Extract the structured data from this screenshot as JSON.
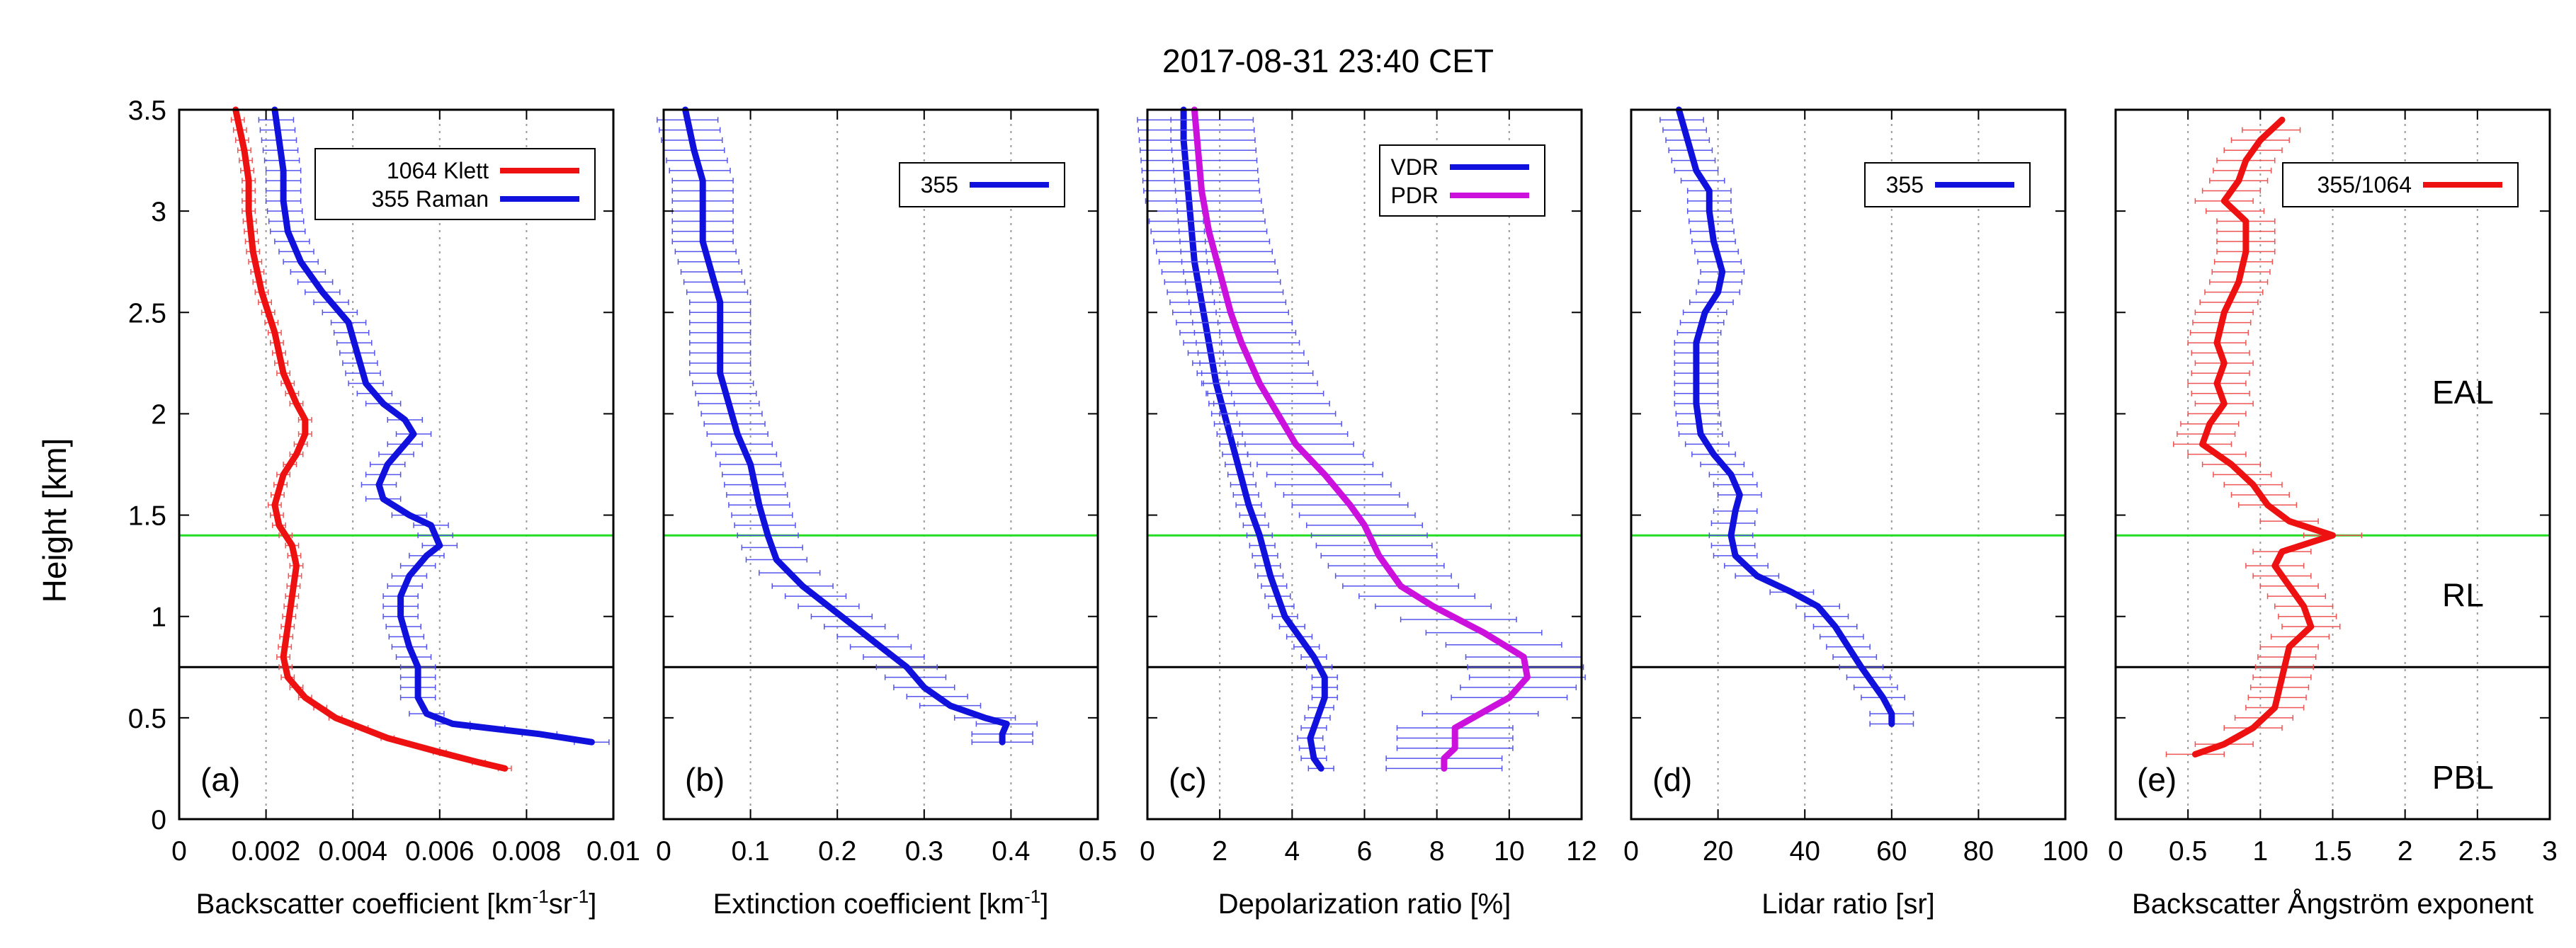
{
  "title": "2017-08-31 23:40 CET",
  "ylabel": "Height [km]",
  "colors": {
    "red": "#ee1111",
    "blue": "#1111dd",
    "magenta": "#cc11dd",
    "green": "#22dd22",
    "black": "#000000",
    "errbar": "#5555ee",
    "errbar_red": "#ee5555"
  },
  "chart_data": [
    {
      "type": "line",
      "panel": "(a)",
      "xlabel": "Backscatter coefficient [km-1sr-1]",
      "xlabel_parts": {
        "base": "Backscatter coefficient [km",
        "e1": "-1",
        "mid": "sr",
        "e2": "-1",
        "end": "]"
      },
      "xlim": [
        0,
        0.01
      ],
      "ylim": [
        0,
        3.5
      ],
      "xticks": [
        0,
        0.002,
        0.004,
        0.006,
        0.008,
        0.01
      ],
      "xtick_labels": [
        "0",
        "0.002",
        "0.004",
        "0.006",
        "0.008",
        "0.01"
      ],
      "yticks": [
        0,
        0.5,
        1,
        1.5,
        2,
        2.5,
        3,
        3.5
      ],
      "ytick_labels": [
        "0",
        "0.5",
        "1",
        "1.5",
        "2",
        "2.5",
        "3",
        "3.5"
      ],
      "series": [
        {
          "name": "1064 Klett",
          "color": "red",
          "err": 0.00015,
          "points": [
            [
              0.0075,
              0.25
            ],
            [
              0.0069,
              0.28
            ],
            [
              0.006,
              0.33
            ],
            [
              0.0048,
              0.4
            ],
            [
              0.0036,
              0.5
            ],
            [
              0.0029,
              0.6
            ],
            [
              0.0025,
              0.7
            ],
            [
              0.0024,
              0.8
            ],
            [
              0.0025,
              0.95
            ],
            [
              0.0026,
              1.1
            ],
            [
              0.0027,
              1.25
            ],
            [
              0.0026,
              1.35
            ],
            [
              0.0023,
              1.45
            ],
            [
              0.0022,
              1.55
            ],
            [
              0.0024,
              1.7
            ],
            [
              0.0027,
              1.8
            ],
            [
              0.0029,
              1.9
            ],
            [
              0.0029,
              1.97
            ],
            [
              0.0027,
              2.05
            ],
            [
              0.0024,
              2.2
            ],
            [
              0.0022,
              2.4
            ],
            [
              0.0019,
              2.6
            ],
            [
              0.0017,
              2.8
            ],
            [
              0.0016,
              3.0
            ],
            [
              0.0016,
              3.15
            ],
            [
              0.0015,
              3.3
            ],
            [
              0.0013,
              3.5
            ]
          ]
        },
        {
          "name": "355 Raman",
          "color": "blue",
          "err": 0.0004,
          "points": [
            [
              0.0095,
              0.38
            ],
            [
              0.0083,
              0.42
            ],
            [
              0.0071,
              0.45
            ],
            [
              0.0063,
              0.47
            ],
            [
              0.0057,
              0.52
            ],
            [
              0.0055,
              0.6
            ],
            [
              0.0055,
              0.75
            ],
            [
              0.0053,
              0.85
            ],
            [
              0.0051,
              1.0
            ],
            [
              0.0051,
              1.1
            ],
            [
              0.0053,
              1.2
            ],
            [
              0.0057,
              1.3
            ],
            [
              0.006,
              1.35
            ],
            [
              0.0058,
              1.45
            ],
            [
              0.0053,
              1.5
            ],
            [
              0.0047,
              1.58
            ],
            [
              0.0046,
              1.65
            ],
            [
              0.0048,
              1.75
            ],
            [
              0.0052,
              1.85
            ],
            [
              0.0054,
              1.9
            ],
            [
              0.0052,
              1.97
            ],
            [
              0.0047,
              2.05
            ],
            [
              0.0043,
              2.15
            ],
            [
              0.0041,
              2.3
            ],
            [
              0.0039,
              2.45
            ],
            [
              0.0033,
              2.6
            ],
            [
              0.0028,
              2.75
            ],
            [
              0.0025,
              2.9
            ],
            [
              0.0024,
              3.05
            ],
            [
              0.0024,
              3.2
            ],
            [
              0.0023,
              3.35
            ],
            [
              0.0022,
              3.5
            ]
          ]
        }
      ],
      "hlines": [
        {
          "y": 1.4,
          "color": "green"
        },
        {
          "y": 0.75,
          "color": "black"
        }
      ],
      "legend": [
        {
          "label": "1064 Klett",
          "color": "red"
        },
        {
          "label": "355 Raman",
          "color": "blue"
        }
      ]
    },
    {
      "type": "line",
      "panel": "(b)",
      "xlabel": "Extinction coefficient [km-1]",
      "xlabel_parts": {
        "base": "Extinction coefficient [km",
        "e1": "-1",
        "end": "]"
      },
      "xlim": [
        0,
        0.5
      ],
      "ylim": [
        0,
        3.5
      ],
      "xticks": [
        0,
        0.1,
        0.2,
        0.3,
        0.4,
        0.5
      ],
      "xtick_labels": [
        "0",
        "0.1",
        "0.2",
        "0.3",
        "0.4",
        "0.5"
      ],
      "series": [
        {
          "name": "355",
          "color": "blue",
          "err": 0.035,
          "points": [
            [
              0.39,
              0.38
            ],
            [
              0.39,
              0.42
            ],
            [
              0.395,
              0.47
            ],
            [
              0.37,
              0.5
            ],
            [
              0.33,
              0.56
            ],
            [
              0.3,
              0.65
            ],
            [
              0.28,
              0.75
            ],
            [
              0.25,
              0.85
            ],
            [
              0.22,
              0.95
            ],
            [
              0.19,
              1.05
            ],
            [
              0.16,
              1.15
            ],
            [
              0.13,
              1.28
            ],
            [
              0.12,
              1.4
            ],
            [
              0.11,
              1.55
            ],
            [
              0.1,
              1.75
            ],
            [
              0.085,
              1.9
            ],
            [
              0.075,
              2.05
            ],
            [
              0.065,
              2.2
            ],
            [
              0.065,
              2.4
            ],
            [
              0.065,
              2.55
            ],
            [
              0.055,
              2.7
            ],
            [
              0.045,
              2.85
            ],
            [
              0.045,
              3.0
            ],
            [
              0.045,
              3.15
            ],
            [
              0.035,
              3.3
            ],
            [
              0.025,
              3.5
            ]
          ]
        }
      ],
      "hlines": [
        {
          "y": 1.4,
          "color": "green"
        },
        {
          "y": 0.75,
          "color": "black"
        }
      ],
      "legend": [
        {
          "label": "355",
          "color": "blue"
        }
      ]
    },
    {
      "type": "line",
      "panel": "(c)",
      "xlabel": "Depolarization ratio [%]",
      "xlim": [
        0,
        12
      ],
      "ylim": [
        0,
        3.5
      ],
      "xticks": [
        0,
        2,
        4,
        6,
        8,
        10,
        12
      ],
      "xtick_labels": [
        "0",
        "2",
        "4",
        "6",
        "8",
        "10",
        "12"
      ],
      "series": [
        {
          "name": "VDR",
          "color": "blue",
          "err": 0.35,
          "points": [
            [
              4.8,
              0.25
            ],
            [
              4.6,
              0.3
            ],
            [
              4.5,
              0.4
            ],
            [
              4.7,
              0.5
            ],
            [
              4.9,
              0.6
            ],
            [
              4.9,
              0.7
            ],
            [
              4.6,
              0.8
            ],
            [
              4.2,
              0.9
            ],
            [
              3.8,
              1.0
            ],
            [
              3.4,
              1.2
            ],
            [
              3.1,
              1.4
            ],
            [
              2.8,
              1.55
            ],
            [
              2.5,
              1.75
            ],
            [
              2.2,
              1.95
            ],
            [
              1.9,
              2.15
            ],
            [
              1.7,
              2.35
            ],
            [
              1.5,
              2.55
            ],
            [
              1.3,
              2.75
            ],
            [
              1.2,
              2.95
            ],
            [
              1.1,
              3.15
            ],
            [
              1.0,
              3.35
            ],
            [
              1.0,
              3.5
            ]
          ]
        },
        {
          "name": "PDR",
          "color": "magenta",
          "err": 1.6,
          "points": [
            [
              8.2,
              0.25
            ],
            [
              8.2,
              0.3
            ],
            [
              8.5,
              0.35
            ],
            [
              8.5,
              0.45
            ],
            [
              9.2,
              0.52
            ],
            [
              10.0,
              0.6
            ],
            [
              10.5,
              0.7
            ],
            [
              10.4,
              0.8
            ],
            [
              9.3,
              0.92
            ],
            [
              7.9,
              1.05
            ],
            [
              7.0,
              1.15
            ],
            [
              6.4,
              1.3
            ],
            [
              6.0,
              1.45
            ],
            [
              5.6,
              1.55
            ],
            [
              4.9,
              1.7
            ],
            [
              4.1,
              1.85
            ],
            [
              3.6,
              2.0
            ],
            [
              3.1,
              2.15
            ],
            [
              2.6,
              2.35
            ],
            [
              2.3,
              2.5
            ],
            [
              2.0,
              2.7
            ],
            [
              1.7,
              2.9
            ],
            [
              1.5,
              3.1
            ],
            [
              1.4,
              3.3
            ],
            [
              1.3,
              3.5
            ]
          ]
        }
      ],
      "hlines": [
        {
          "y": 1.4,
          "color": "green"
        },
        {
          "y": 0.75,
          "color": "black"
        }
      ],
      "legend": [
        {
          "label": "VDR",
          "color": "blue"
        },
        {
          "label": "PDR",
          "color": "magenta"
        }
      ]
    },
    {
      "type": "line",
      "panel": "(d)",
      "xlabel": "Lidar ratio [sr]",
      "xlim": [
        0,
        100
      ],
      "ylim": [
        0,
        3.5
      ],
      "xticks": [
        0,
        20,
        40,
        60,
        80,
        100
      ],
      "xtick_labels": [
        "0",
        "20",
        "40",
        "60",
        "80",
        "100"
      ],
      "series": [
        {
          "name": "355",
          "color": "blue",
          "err": 5,
          "points": [
            [
              60,
              0.47
            ],
            [
              60,
              0.52
            ],
            [
              58,
              0.6
            ],
            [
              53,
              0.75
            ],
            [
              50,
              0.85
            ],
            [
              47,
              0.95
            ],
            [
              43,
              1.05
            ],
            [
              37,
              1.12
            ],
            [
              29,
              1.2
            ],
            [
              24,
              1.3
            ],
            [
              23,
              1.4
            ],
            [
              24,
              1.52
            ],
            [
              25,
              1.6
            ],
            [
              23,
              1.7
            ],
            [
              19,
              1.8
            ],
            [
              16,
              1.9
            ],
            [
              15,
              2.05
            ],
            [
              15,
              2.2
            ],
            [
              15,
              2.35
            ],
            [
              17,
              2.5
            ],
            [
              20,
              2.6
            ],
            [
              21,
              2.7
            ],
            [
              19,
              2.85
            ],
            [
              18,
              3.0
            ],
            [
              18,
              3.1
            ],
            [
              15,
              3.2
            ],
            [
              13,
              3.35
            ],
            [
              11,
              3.5
            ]
          ]
        }
      ],
      "hlines": [
        {
          "y": 1.4,
          "color": "green"
        },
        {
          "y": 0.75,
          "color": "black"
        }
      ],
      "legend": [
        {
          "label": "355",
          "color": "blue"
        }
      ]
    },
    {
      "type": "line",
      "panel": "(e)",
      "xlabel": "Backscatter Ångström exponent",
      "xlim": [
        0,
        3
      ],
      "ylim": [
        0,
        3.5
      ],
      "xticks": [
        0,
        0.5,
        1,
        1.5,
        2,
        2.5,
        3
      ],
      "xtick_labels": [
        "0",
        "0.5",
        "1",
        "1.5",
        "2",
        "2.5",
        "3"
      ],
      "series": [
        {
          "name": "355/1064",
          "color": "red",
          "err": 0.2,
          "points": [
            [
              0.55,
              0.32
            ],
            [
              0.75,
              0.37
            ],
            [
              0.95,
              0.45
            ],
            [
              1.1,
              0.55
            ],
            [
              1.15,
              0.7
            ],
            [
              1.2,
              0.85
            ],
            [
              1.35,
              0.95
            ],
            [
              1.3,
              1.05
            ],
            [
              1.2,
              1.15
            ],
            [
              1.1,
              1.25
            ],
            [
              1.15,
              1.32
            ],
            [
              1.5,
              1.4
            ],
            [
              1.2,
              1.47
            ],
            [
              1.05,
              1.55
            ],
            [
              0.95,
              1.65
            ],
            [
              0.8,
              1.75
            ],
            [
              0.6,
              1.85
            ],
            [
              0.65,
              1.95
            ],
            [
              0.75,
              2.05
            ],
            [
              0.7,
              2.15
            ],
            [
              0.75,
              2.25
            ],
            [
              0.7,
              2.35
            ],
            [
              0.75,
              2.5
            ],
            [
              0.85,
              2.65
            ],
            [
              0.9,
              2.8
            ],
            [
              0.9,
              2.95
            ],
            [
              0.75,
              3.05
            ],
            [
              0.85,
              3.15
            ],
            [
              0.9,
              3.25
            ],
            [
              1.0,
              3.35
            ],
            [
              1.15,
              3.45
            ]
          ]
        }
      ],
      "hlines": [
        {
          "y": 1.4,
          "color": "green"
        },
        {
          "y": 0.75,
          "color": "black"
        }
      ],
      "legend": [
        {
          "label": "355/1064",
          "color": "red"
        }
      ],
      "annotations": [
        {
          "text": "EAL",
          "x": 2.4,
          "y": 2.05
        },
        {
          "text": "RL",
          "x": 2.4,
          "y": 1.05
        },
        {
          "text": "PBL",
          "x": 2.4,
          "y": 0.15
        }
      ]
    }
  ]
}
